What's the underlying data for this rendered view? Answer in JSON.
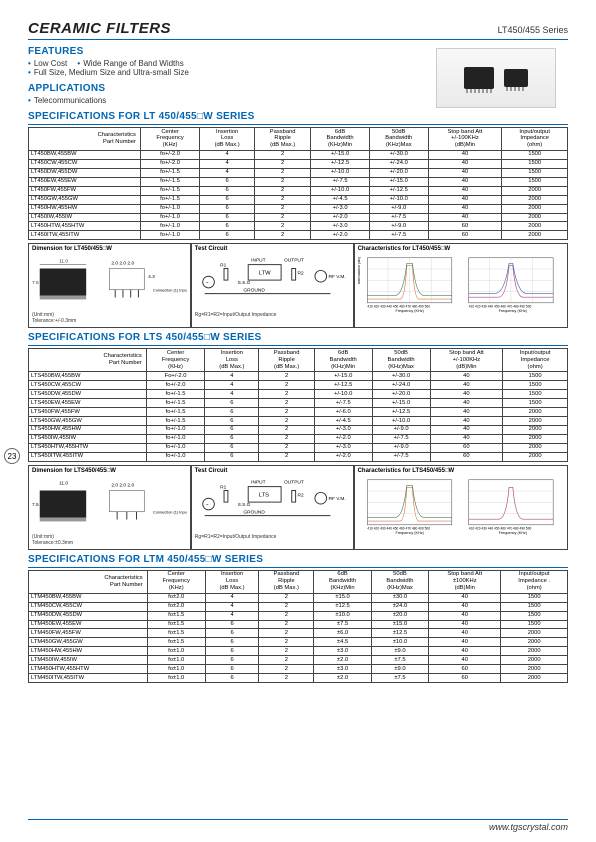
{
  "header": {
    "title": "CERAMIC FILTERS",
    "series": "LT450/455 Series"
  },
  "features": {
    "heading": "FEATURES",
    "items": [
      "Low  Cost",
      "Wide Range of Band Widths",
      "Full Size, Medium Size and Ultra-small Size"
    ]
  },
  "applications": {
    "heading": "APPLICATIONS",
    "items": [
      "Telecommunications"
    ]
  },
  "columns": {
    "ch": "Characteristics",
    "pn": "Part Number",
    "cf": "Center\nFrequency\n(KHz)",
    "il": "Insertion\nLoss\n(dB Max.)",
    "pr": "Passband\nRipple\n(dB Max.)",
    "b6": "6dB\nBandwidth\n(KHz)Min",
    "b50": "50dB\nBandwidth\n(KHz)Max",
    "sb": "Stop band Att\n+/-100KHz\n(dB)Min",
    "imp": "Input/output\nImpedance\n(ohm)"
  },
  "lt": {
    "heading": "SPECIFICATIONS  FOR LT 450/455□W  SERIES",
    "rows": [
      [
        "LT450BW,455BW",
        "fo+/-2.0",
        "4",
        "2",
        "+/-15.0",
        "+/-30.0",
        "40",
        "1500"
      ],
      [
        "LT450CW,455CW",
        "fo+/-2.0",
        "4",
        "2",
        "+/-12.5",
        "+/-24.0",
        "40",
        "1500"
      ],
      [
        "LT450DW,455DW",
        "fo+/-1.5",
        "4",
        "2",
        "+/-10.0",
        "+/-20.0",
        "40",
        "1500"
      ],
      [
        "LT450EW,455EW",
        "fo+/-1.5",
        "6",
        "2",
        "+/-7.5",
        "+/-15.0",
        "40",
        "1500"
      ],
      [
        "LT450FW,455FW",
        "fo+/-1.5",
        "6",
        "2",
        "+/-10.0",
        "+/-12.5",
        "40",
        "2000"
      ],
      [
        "LT450GW,455GW",
        "fo+/-1.5",
        "6",
        "2",
        "+/-4.5",
        "+/-10.0",
        "40",
        "2000"
      ],
      [
        "LT450HW,455HW",
        "fo+/-1.0",
        "6",
        "2",
        "+/-3.0",
        "+/-9.0",
        "40",
        "2000"
      ],
      [
        "LT450IW,455IW",
        "fo+/-1.0",
        "6",
        "2",
        "+/-2.0",
        "+/-7.5",
        "40",
        "2000"
      ],
      [
        "LT450HTW,455HTW",
        "fo+/-1.0",
        "6",
        "2",
        "+/-3.0",
        "+/-9.0",
        "60",
        "2000"
      ],
      [
        "LT450ITW,455ITW",
        "fo+/-1.0",
        "6",
        "2",
        "+/-2.0",
        "+/-7.5",
        "60",
        "2000"
      ]
    ],
    "dim_h": "Dimension for LT450/455□W",
    "tc_h": "Test Circuit",
    "ch_h": "Characteristics for LT450/455□W",
    "unit": "(Unit:mm)",
    "tol": "Tolerance:+/-0.3mm",
    "rg": "Rg=R1=R2=Input/Output Impedance",
    "conn": "Connection\n(1) Input\n(2)(4)Ground\n(3) Output",
    "freq": "Frequency (KHz)",
    "att": "Attenuation (dB)"
  },
  "lts": {
    "heading": "SPECIFICATIONS  FOR LTS 450/455□W SERIES",
    "rows": [
      [
        "LTS450BW,455BW",
        "Fo+/-2.0",
        "4",
        "2",
        "+/-15.0",
        "+/-30.0",
        "40",
        "1500"
      ],
      [
        "LTS450CW,455CW",
        "fo+/-2.0",
        "4",
        "2",
        "+/-12.5",
        "+/-24.0",
        "40",
        "1500"
      ],
      [
        "LTS450DW,455DW",
        "fo+/-1.5",
        "4",
        "2",
        "+/-10.0",
        "+/-20.0",
        "40",
        "1500"
      ],
      [
        "LTS450EW,455EW",
        "fo+/-1.5",
        "6",
        "2",
        "+/-7.5",
        "+/-15.0",
        "40",
        "1500"
      ],
      [
        "LTS450FW,455FW",
        "fo+/-1.5",
        "6",
        "2",
        "+/-6.0",
        "+/-12.5",
        "40",
        "2000"
      ],
      [
        "LTS450GW,455GW",
        "fo+/-1.5",
        "6",
        "2",
        "+/-4.5",
        "+/-10.0",
        "40",
        "2000"
      ],
      [
        "LTS450HW,455HW",
        "fo+/-1.0",
        "6",
        "2",
        "+/-3.0",
        "+/-9.0",
        "40",
        "2000"
      ],
      [
        "LTS450IW,455IW",
        "fo+/-1.0",
        "6",
        "2",
        "+/-2.0",
        "+/-7.5",
        "40",
        "2000"
      ],
      [
        "LTS450HTW,455HTW",
        "fo+/-1.0",
        "6",
        "2",
        "+/-3.0",
        "+/-9.0",
        "60",
        "2000"
      ],
      [
        "LTS450ITW,455ITW",
        "fo+/-1.0",
        "6",
        "2",
        "+/-2.0",
        "+/-7.5",
        "60",
        "2000"
      ]
    ],
    "dim_h": "Dimension for LTS450/455□W",
    "tc_h": "Test Circuit",
    "ch_h": "Characteristics for LTS450/455□W",
    "conn": "Connection\n(1) Input\n(2) Ground\n(3) Output"
  },
  "ltm": {
    "heading": "SPECIFICATIONS  FOR LTM 450/455□W SERIES",
    "columns_sb": "Stop band Att\n±100KHz\n(dB)Min",
    "columns_imp": "Input/output\nImpedance .\n(ohm)",
    "rows": [
      [
        "LTM450BW,455BW",
        "fo±2.0",
        "4",
        "2",
        "±15.0",
        "±30.0",
        "40",
        "1500"
      ],
      [
        "LTM450CW,455CW",
        "fo±2.0",
        "4",
        "2",
        "±12.5",
        "±24.0",
        "40",
        "1500"
      ],
      [
        "LTM450DW,455DW",
        "fo±1.5",
        "4",
        "2",
        "±10.0",
        "±20.0",
        "40",
        "1500"
      ],
      [
        "LTM450EW,455EW",
        "fo±1.5",
        "6",
        "2",
        "±7.5",
        "±15.0",
        "40",
        "1500"
      ],
      [
        "LTM450FW,455FW",
        "fo±1.5",
        "6",
        "2",
        "±6.0",
        "±12.5",
        "40",
        "2000"
      ],
      [
        "LTM450GW,455GW",
        "fo±1.5",
        "6",
        "2",
        "±4.5",
        "±10.0",
        "40",
        "2000"
      ],
      [
        "LTM450HW,455HW",
        "fo±1.0",
        "6",
        "2",
        "±3.0",
        "±9.0",
        "40",
        "2000"
      ],
      [
        "LTM450IW,455IW",
        "fo±1.0",
        "6",
        "2",
        "±2.0",
        "±7.5",
        "40",
        "2000"
      ],
      [
        "LTM450HTW,455HTW",
        "fo±1.0",
        "6",
        "2",
        "±3.0",
        "±9.0",
        "60",
        "2000"
      ],
      [
        "LTM450ITW,455ITW",
        "fo±1.0",
        "6",
        "2",
        "±2.0",
        "±7.5",
        "60",
        "2000"
      ]
    ]
  },
  "badge": "23",
  "footer": "www.tgscrystal.com",
  "style": {
    "accent": "#0066b3",
    "border": "#444",
    "text": "#333",
    "panel_dims": {
      "d1": "7.5",
      "d2": "11.0",
      "d3": "2.5",
      "d4": "5.0",
      "t1": "2.0",
      "t2": "2.0",
      "t3": "2.0",
      "h": "5.8",
      "off": "0.8",
      "pw": "4.3"
    },
    "chart": {
      "xticks": "410 420 430 440 450 460 470 480 490 500"
    }
  }
}
